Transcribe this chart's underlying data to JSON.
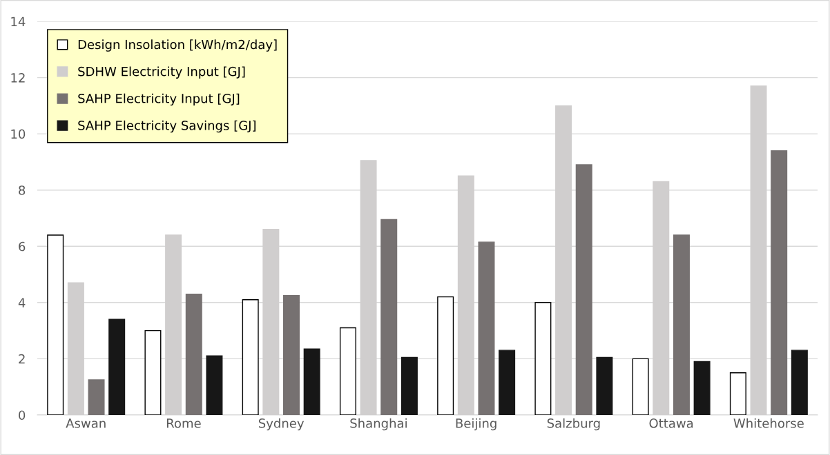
{
  "chart_data": {
    "type": "bar",
    "categories": [
      "Aswan",
      "Rome",
      "Sydney",
      "Shanghai",
      "Beijing",
      "Salzburg",
      "Ottawa",
      "Whitehorse"
    ],
    "series": [
      {
        "name": "Design Insolation [kWh/m2/day]",
        "color": "#ffffff",
        "values": [
          6.4,
          3.0,
          4.1,
          3.1,
          4.2,
          4.0,
          2.0,
          1.5
        ]
      },
      {
        "name": "SDHW Electricity Input [GJ]",
        "color": "#d0cece",
        "values": [
          4.7,
          6.4,
          6.6,
          9.05,
          8.5,
          11.0,
          8.3,
          11.7
        ]
      },
      {
        "name": "SAHP Electricity Input [GJ]",
        "color": "#767171",
        "values": [
          1.25,
          4.3,
          4.25,
          6.95,
          6.15,
          8.9,
          6.4,
          9.4
        ]
      },
      {
        "name": "SAHP Electricity Savings [GJ]",
        "color": "#171717",
        "values": [
          3.4,
          2.1,
          2.35,
          2.05,
          2.3,
          2.05,
          1.9,
          2.3
        ]
      }
    ],
    "ylim": [
      0,
      14
    ],
    "yticks": [
      0,
      2,
      4,
      6,
      8,
      10,
      12,
      14
    ],
    "grid": "y",
    "legend": "top left"
  }
}
